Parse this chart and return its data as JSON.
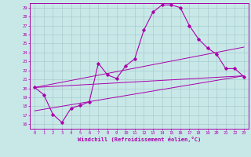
{
  "bg_color": "#c8e8e8",
  "line_color": "#aa00aa",
  "xlim": [
    -0.5,
    23.5
  ],
  "ylim": [
    15.5,
    29.5
  ],
  "yticks": [
    16,
    17,
    18,
    19,
    20,
    21,
    22,
    23,
    24,
    25,
    26,
    27,
    28,
    29
  ],
  "xticks": [
    0,
    1,
    2,
    3,
    4,
    5,
    6,
    7,
    8,
    9,
    10,
    11,
    12,
    13,
    14,
    15,
    16,
    17,
    18,
    19,
    20,
    21,
    22,
    23
  ],
  "xlabel": "Windchill (Refroidissement éolien,°C)",
  "curve_x": [
    0,
    1,
    2,
    3,
    4,
    5,
    6,
    7,
    8,
    9,
    10,
    11,
    12,
    13,
    14,
    15,
    16,
    17,
    18,
    19,
    20,
    21,
    22,
    23
  ],
  "curve_y": [
    20.1,
    19.3,
    17.1,
    16.2,
    17.8,
    18.1,
    18.5,
    22.8,
    21.5,
    21.1,
    22.5,
    23.3,
    26.5,
    28.5,
    29.3,
    29.3,
    29.0,
    27.0,
    25.5,
    24.5,
    23.8,
    22.2,
    22.2,
    21.3
  ],
  "line1_x": [
    0,
    23
  ],
  "line1_y": [
    20.1,
    21.4
  ],
  "line2_x": [
    0,
    23
  ],
  "line2_y": [
    17.5,
    21.4
  ],
  "line3_x": [
    0,
    23
  ],
  "line3_y": [
    20.1,
    24.6
  ],
  "grid_color": "#a8cccc"
}
